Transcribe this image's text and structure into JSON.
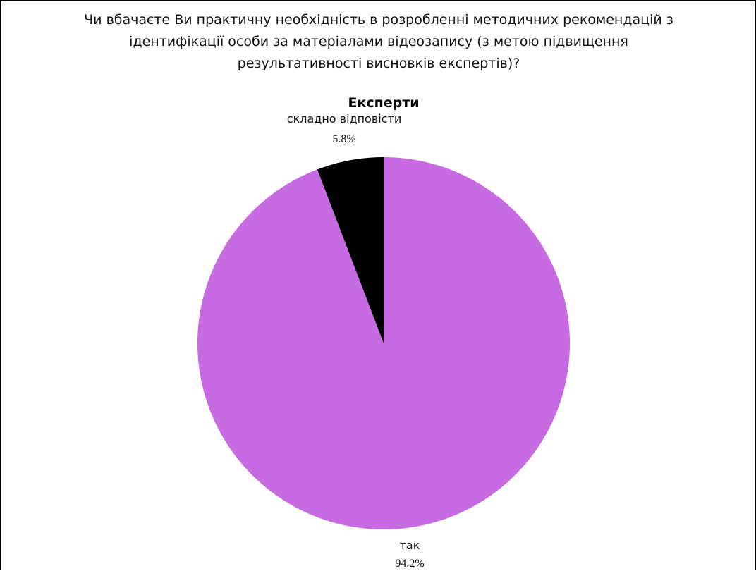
{
  "question": {
    "lines": [
      "Чи вбачаєте Ви практичну необхідність в розробленні методичних рекомендацій з",
      "ідентифікації особи за матеріалами відеозапису (з метою підвищення",
      "результативності висновків експертів)?"
    ]
  },
  "chart_data": {
    "type": "pie",
    "title": "Експерти",
    "start": "top",
    "direction": "clockwise",
    "slices": [
      {
        "label": "так",
        "value": 94.2,
        "value_label": "94.2%",
        "color": "#c76be3"
      },
      {
        "label": "складно відповісти",
        "value": 5.8,
        "value_label": "5.8%",
        "color": "#000000"
      }
    ]
  }
}
